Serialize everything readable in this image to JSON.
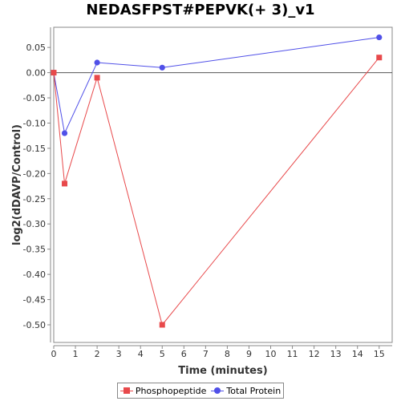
{
  "chart_data": {
    "type": "line",
    "title": "NEDASFPST#PEPVK(+ 3)_v1",
    "xlabel": "Time (minutes)",
    "ylabel": "log2(dDAVP/Control)",
    "xlim": [
      0,
      15.6
    ],
    "ylim": [
      -0.535,
      0.09
    ],
    "x_ticks": [
      0,
      1,
      2,
      3,
      4,
      5,
      6,
      7,
      8,
      9,
      10,
      11,
      12,
      13,
      14,
      15
    ],
    "y_ticks": [
      0.05,
      0.0,
      -0.05,
      -0.1,
      -0.15,
      -0.2,
      -0.25,
      -0.3,
      -0.35,
      -0.4,
      -0.45,
      -0.5
    ],
    "y_tick_labels": [
      "0.05",
      "0.00",
      "-0.05",
      "-0.10",
      "-0.15",
      "-0.20",
      "-0.25",
      "-0.30",
      "-0.35",
      "-0.40",
      "-0.45",
      "-0.50"
    ],
    "zero_line": true,
    "grid": false,
    "legend_position": "bottom",
    "series": [
      {
        "name": "Phosphopeptide",
        "color": "#e8494b",
        "marker": "square",
        "points": [
          [
            0,
            0.0
          ],
          [
            0.5,
            -0.22
          ],
          [
            2,
            -0.01
          ],
          [
            5,
            -0.5
          ],
          [
            15,
            0.03
          ]
        ]
      },
      {
        "name": "Total Protein",
        "color": "#5050e8",
        "marker": "circle",
        "points": [
          [
            0,
            0.0
          ],
          [
            0.5,
            -0.12
          ],
          [
            2,
            0.02
          ],
          [
            5,
            0.01
          ],
          [
            15,
            0.07
          ]
        ]
      }
    ]
  }
}
